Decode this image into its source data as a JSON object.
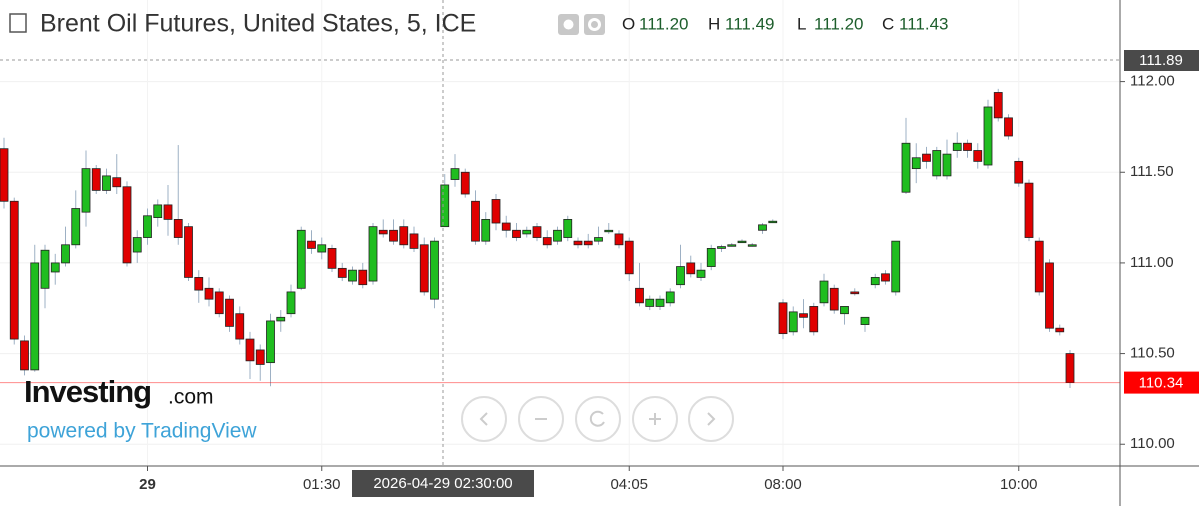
{
  "header": {
    "title": "Brent Oil Futures, United States, 5, ICE",
    "ohlc": [
      {
        "label": "O",
        "value": "111.20"
      },
      {
        "label": "H",
        "value": "111.49"
      },
      {
        "label": "L",
        "value": "111.20"
      },
      {
        "label": "C",
        "value": "111.43"
      }
    ]
  },
  "watermark": {
    "brand": "Investing",
    "suffix": ".com",
    "powered": "powered by TradingView"
  },
  "crosshair": {
    "time": "2026-04-29 02:30:00",
    "price": "111.89"
  },
  "chart_data": {
    "type": "candlestick",
    "up_color": "#1fbd1f",
    "down_color": "#e00000",
    "wick_color": "#9db0c4",
    "grid": true,
    "ylim": [
      109.88,
      112.45
    ],
    "yticks": [
      {
        "value": 110,
        "label": "110.00"
      },
      {
        "value": 110.5,
        "label": "110.50"
      },
      {
        "value": 111,
        "label": "111.00"
      },
      {
        "value": 111.5,
        "label": "111.50"
      },
      {
        "value": 112,
        "label": "112.00"
      }
    ],
    "last_price": {
      "value": 110.34,
      "label": "110.34",
      "color": "#ff0000"
    },
    "categories": [
      null,
      null,
      null,
      null,
      null,
      null,
      null,
      null,
      null,
      null,
      null,
      null,
      null,
      null,
      "29",
      null,
      null,
      null,
      null,
      null,
      null,
      null,
      null,
      null,
      null,
      null,
      null,
      null,
      null,
      null,
      null,
      "01:30",
      null,
      null,
      null,
      null,
      null,
      null,
      null,
      null,
      null,
      null,
      null,
      null,
      null,
      null,
      null,
      null,
      null,
      null,
      null,
      null,
      null,
      null,
      null,
      null,
      null,
      null,
      null,
      null,
      null,
      "04:05",
      null,
      null,
      null,
      null,
      null,
      null,
      null,
      null,
      null,
      null,
      null,
      null,
      null,
      null,
      "08:00",
      null,
      null,
      null,
      null,
      null,
      null,
      null,
      null,
      null,
      null,
      null,
      null,
      null,
      null,
      null,
      null,
      null,
      null,
      null,
      null,
      null,
      null,
      "10:00",
      null,
      null,
      null,
      null,
      null
    ],
    "candles": [
      {
        "o": 111.63,
        "h": 111.69,
        "l": 111.3,
        "c": 111.34
      },
      {
        "o": 111.34,
        "h": 111.36,
        "l": 110.55,
        "c": 110.58
      },
      {
        "o": 110.57,
        "h": 110.6,
        "l": 110.38,
        "c": 110.41
      },
      {
        "o": 110.41,
        "h": 111.1,
        "l": 110.4,
        "c": 111.0
      },
      {
        "o": 110.86,
        "h": 111.1,
        "l": 110.75,
        "c": 111.07
      },
      {
        "o": 110.95,
        "h": 111.05,
        "l": 110.88,
        "c": 111.0
      },
      {
        "o": 111.0,
        "h": 111.2,
        "l": 110.98,
        "c": 111.1
      },
      {
        "o": 111.1,
        "h": 111.4,
        "l": 111.08,
        "c": 111.3
      },
      {
        "o": 111.28,
        "h": 111.62,
        "l": 111.2,
        "c": 111.52
      },
      {
        "o": 111.52,
        "h": 111.54,
        "l": 111.38,
        "c": 111.4
      },
      {
        "o": 111.4,
        "h": 111.52,
        "l": 111.38,
        "c": 111.48
      },
      {
        "o": 111.47,
        "h": 111.6,
        "l": 111.38,
        "c": 111.42
      },
      {
        "o": 111.42,
        "h": 111.45,
        "l": 110.98,
        "c": 111.0
      },
      {
        "o": 111.06,
        "h": 111.18,
        "l": 111.0,
        "c": 111.14
      },
      {
        "o": 111.14,
        "h": 111.3,
        "l": 111.1,
        "c": 111.26
      },
      {
        "o": 111.25,
        "h": 111.35,
        "l": 111.2,
        "c": 111.32
      },
      {
        "o": 111.32,
        "h": 111.43,
        "l": 111.15,
        "c": 111.24
      },
      {
        "o": 111.24,
        "h": 111.65,
        "l": 111.1,
        "c": 111.14
      },
      {
        "o": 111.2,
        "h": 111.22,
        "l": 110.9,
        "c": 110.92
      },
      {
        "o": 110.92,
        "h": 110.96,
        "l": 110.78,
        "c": 110.85
      },
      {
        "o": 110.86,
        "h": 110.92,
        "l": 110.76,
        "c": 110.8
      },
      {
        "o": 110.84,
        "h": 110.86,
        "l": 110.7,
        "c": 110.72
      },
      {
        "o": 110.8,
        "h": 110.82,
        "l": 110.62,
        "c": 110.65
      },
      {
        "o": 110.72,
        "h": 110.76,
        "l": 110.55,
        "c": 110.58
      },
      {
        "o": 110.58,
        "h": 110.62,
        "l": 110.36,
        "c": 110.46
      },
      {
        "o": 110.52,
        "h": 110.55,
        "l": 110.35,
        "c": 110.44
      },
      {
        "o": 110.45,
        "h": 110.72,
        "l": 110.32,
        "c": 110.68
      },
      {
        "o": 110.68,
        "h": 110.74,
        "l": 110.62,
        "c": 110.7
      },
      {
        "o": 110.72,
        "h": 110.88,
        "l": 110.7,
        "c": 110.84
      },
      {
        "o": 110.86,
        "h": 111.2,
        "l": 110.85,
        "c": 111.18
      },
      {
        "o": 111.12,
        "h": 111.18,
        "l": 111.05,
        "c": 111.08
      },
      {
        "o": 111.06,
        "h": 111.14,
        "l": 111.02,
        "c": 111.1
      },
      {
        "o": 111.08,
        "h": 111.1,
        "l": 110.95,
        "c": 110.97
      },
      {
        "o": 110.97,
        "h": 111.0,
        "l": 110.9,
        "c": 110.92
      },
      {
        "o": 110.9,
        "h": 110.98,
        "l": 110.88,
        "c": 110.96
      },
      {
        "o": 110.96,
        "h": 111.0,
        "l": 110.86,
        "c": 110.88
      },
      {
        "o": 110.9,
        "h": 111.22,
        "l": 110.88,
        "c": 111.2
      },
      {
        "o": 111.18,
        "h": 111.24,
        "l": 111.14,
        "c": 111.16
      },
      {
        "o": 111.18,
        "h": 111.24,
        "l": 111.1,
        "c": 111.12
      },
      {
        "o": 111.2,
        "h": 111.24,
        "l": 111.08,
        "c": 111.1
      },
      {
        "o": 111.16,
        "h": 111.2,
        "l": 111.06,
        "c": 111.08
      },
      {
        "o": 111.1,
        "h": 111.14,
        "l": 110.82,
        "c": 110.84
      },
      {
        "o": 110.8,
        "h": 111.14,
        "l": 110.75,
        "c": 111.12
      },
      {
        "o": 111.2,
        "h": 111.49,
        "l": 111.2,
        "c": 111.43
      },
      {
        "o": 111.46,
        "h": 111.6,
        "l": 111.42,
        "c": 111.52
      },
      {
        "o": 111.5,
        "h": 111.52,
        "l": 111.36,
        "c": 111.38
      },
      {
        "o": 111.34,
        "h": 111.4,
        "l": 111.1,
        "c": 111.12
      },
      {
        "o": 111.12,
        "h": 111.28,
        "l": 111.1,
        "c": 111.24
      },
      {
        "o": 111.35,
        "h": 111.38,
        "l": 111.18,
        "c": 111.22
      },
      {
        "o": 111.22,
        "h": 111.26,
        "l": 111.14,
        "c": 111.18
      },
      {
        "o": 111.18,
        "h": 111.22,
        "l": 111.12,
        "c": 111.14
      },
      {
        "o": 111.16,
        "h": 111.2,
        "l": 111.14,
        "c": 111.18
      },
      {
        "o": 111.2,
        "h": 111.22,
        "l": 111.12,
        "c": 111.14
      },
      {
        "o": 111.14,
        "h": 111.18,
        "l": 111.08,
        "c": 111.1
      },
      {
        "o": 111.12,
        "h": 111.2,
        "l": 111.1,
        "c": 111.18
      },
      {
        "o": 111.14,
        "h": 111.26,
        "l": 111.12,
        "c": 111.24
      },
      {
        "o": 111.12,
        "h": 111.14,
        "l": 111.08,
        "c": 111.1
      },
      {
        "o": 111.12,
        "h": 111.16,
        "l": 111.08,
        "c": 111.1
      },
      {
        "o": 111.12,
        "h": 111.2,
        "l": 111.1,
        "c": 111.14
      },
      {
        "o": 111.18,
        "h": 111.22,
        "l": 111.16,
        "c": 111.18
      },
      {
        "o": 111.16,
        "h": 111.18,
        "l": 111.08,
        "c": 111.1
      },
      {
        "o": 111.12,
        "h": 111.14,
        "l": 110.9,
        "c": 110.94
      },
      {
        "o": 110.86,
        "h": 111.0,
        "l": 110.76,
        "c": 110.78
      },
      {
        "o": 110.76,
        "h": 110.82,
        "l": 110.74,
        "c": 110.8
      },
      {
        "o": 110.76,
        "h": 110.82,
        "l": 110.74,
        "c": 110.8
      },
      {
        "o": 110.78,
        "h": 110.86,
        "l": 110.76,
        "c": 110.84
      },
      {
        "o": 110.88,
        "h": 111.1,
        "l": 110.86,
        "c": 110.98
      },
      {
        "o": 111.0,
        "h": 111.04,
        "l": 110.92,
        "c": 110.94
      },
      {
        "o": 110.92,
        "h": 111.0,
        "l": 110.9,
        "c": 110.96
      },
      {
        "o": 110.98,
        "h": 111.1,
        "l": 110.96,
        "c": 111.08
      },
      {
        "o": 111.08,
        "h": 111.1,
        "l": 111.06,
        "c": 111.09
      },
      {
        "o": 111.1,
        "h": 111.11,
        "l": 111.09,
        "c": 111.1
      },
      {
        "o": 111.12,
        "h": 111.13,
        "l": 111.11,
        "c": 111.12
      },
      {
        "o": 111.1,
        "h": 111.11,
        "l": 111.09,
        "c": 111.1
      },
      {
        "o": 111.18,
        "h": 111.22,
        "l": 111.16,
        "c": 111.21
      },
      {
        "o": 111.23,
        "h": 111.24,
        "l": 111.22,
        "c": 111.23
      },
      {
        "o": 110.78,
        "h": 110.8,
        "l": 110.58,
        "c": 110.61
      },
      {
        "o": 110.62,
        "h": 110.76,
        "l": 110.6,
        "c": 110.73
      },
      {
        "o": 110.72,
        "h": 110.8,
        "l": 110.64,
        "c": 110.7
      },
      {
        "o": 110.76,
        "h": 110.78,
        "l": 110.6,
        "c": 110.62
      },
      {
        "o": 110.78,
        "h": 110.94,
        "l": 110.76,
        "c": 110.9
      },
      {
        "o": 110.86,
        "h": 110.88,
        "l": 110.72,
        "c": 110.74
      },
      {
        "o": 110.72,
        "h": 110.76,
        "l": 110.66,
        "c": 110.76
      },
      {
        "o": 110.84,
        "h": 110.86,
        "l": 110.82,
        "c": 110.83
      },
      {
        "o": 110.66,
        "h": 110.7,
        "l": 110.62,
        "c": 110.7
      },
      {
        "o": 110.88,
        "h": 110.94,
        "l": 110.86,
        "c": 110.92
      },
      {
        "o": 110.94,
        "h": 110.96,
        "l": 110.88,
        "c": 110.9
      },
      {
        "o": 110.84,
        "h": 111.12,
        "l": 110.82,
        "c": 111.12
      },
      {
        "o": 111.39,
        "h": 111.8,
        "l": 111.38,
        "c": 111.66
      },
      {
        "o": 111.52,
        "h": 111.66,
        "l": 111.44,
        "c": 111.58
      },
      {
        "o": 111.6,
        "h": 111.64,
        "l": 111.52,
        "c": 111.56
      },
      {
        "o": 111.48,
        "h": 111.64,
        "l": 111.46,
        "c": 111.62
      },
      {
        "o": 111.48,
        "h": 111.68,
        "l": 111.46,
        "c": 111.6
      },
      {
        "o": 111.62,
        "h": 111.72,
        "l": 111.58,
        "c": 111.66
      },
      {
        "o": 111.66,
        "h": 111.68,
        "l": 111.58,
        "c": 111.62
      },
      {
        "o": 111.62,
        "h": 111.66,
        "l": 111.52,
        "c": 111.56
      },
      {
        "o": 111.54,
        "h": 111.9,
        "l": 111.52,
        "c": 111.86
      },
      {
        "o": 111.94,
        "h": 111.96,
        "l": 111.78,
        "c": 111.8
      },
      {
        "o": 111.8,
        "h": 111.82,
        "l": 111.68,
        "c": 111.7
      },
      {
        "o": 111.56,
        "h": 111.58,
        "l": 111.42,
        "c": 111.44
      },
      {
        "o": 111.44,
        "h": 111.46,
        "l": 111.12,
        "c": 111.14
      },
      {
        "o": 111.12,
        "h": 111.14,
        "l": 110.82,
        "c": 110.84
      },
      {
        "o": 111.0,
        "h": 111.02,
        "l": 110.62,
        "c": 110.64
      },
      {
        "o": 110.64,
        "h": 110.66,
        "l": 110.6,
        "c": 110.62
      },
      {
        "o": 110.5,
        "h": 110.52,
        "l": 110.31,
        "c": 110.34
      }
    ]
  }
}
